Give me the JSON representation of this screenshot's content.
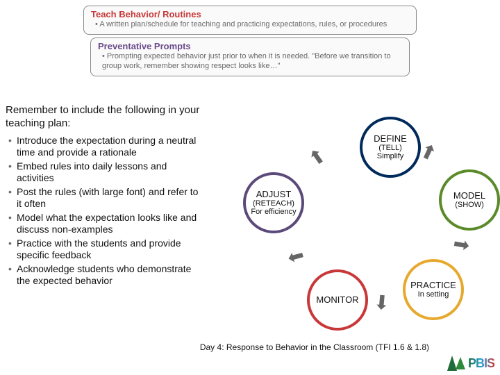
{
  "top_boxes": [
    {
      "title": "Teach Behavior/ Routines",
      "title_color": "#c93838",
      "bullet": "A written plan/schedule for teaching and practicing expectations, rules, or procedures"
    },
    {
      "title": "Preventative Prompts",
      "title_color": "#6b4a8a",
      "bullet": "Prompting expected behavior just prior to when it is needed. \"Before we transition to group work, remember showing respect looks like…\""
    }
  ],
  "intro": "Remember to include the following in your teaching plan:",
  "bullets": [
    "Introduce the expectation during a neutral time and provide a rationale",
    "Embed rules into daily lessons and activities",
    "Post the rules (with large font) and refer to it often",
    "Model what the expectation looks like and discuss non-examples",
    "Practice with the students and provide specific feedback",
    "Acknowledge students who demonstrate the expected behavior"
  ],
  "circles": {
    "define": {
      "main": "DEFINE",
      "sub1": "(TELL)",
      "sub2": "Simplify",
      "border": "#002a5c"
    },
    "model": {
      "main": "MODEL",
      "sub1": "(SHOW)",
      "sub2": "",
      "border": "#5b8a2a"
    },
    "practice": {
      "main": "PRACTICE",
      "sub1": "",
      "sub2": "In setting",
      "border": "#e6a92e"
    },
    "monitor": {
      "main": "MONITOR",
      "sub1": "",
      "sub2": "",
      "border": "#c93838"
    },
    "adjust": {
      "main": "ADJUST",
      "sub1": "(RETEACH)",
      "sub2": "For efficiency",
      "border": "#5b4a7a"
    }
  },
  "arrow_glyph": "⬆",
  "footer": "Day 4: Response to Behavior in the Classroom (TFI 1.6 & 1.8)",
  "logo_text": "PBIS"
}
